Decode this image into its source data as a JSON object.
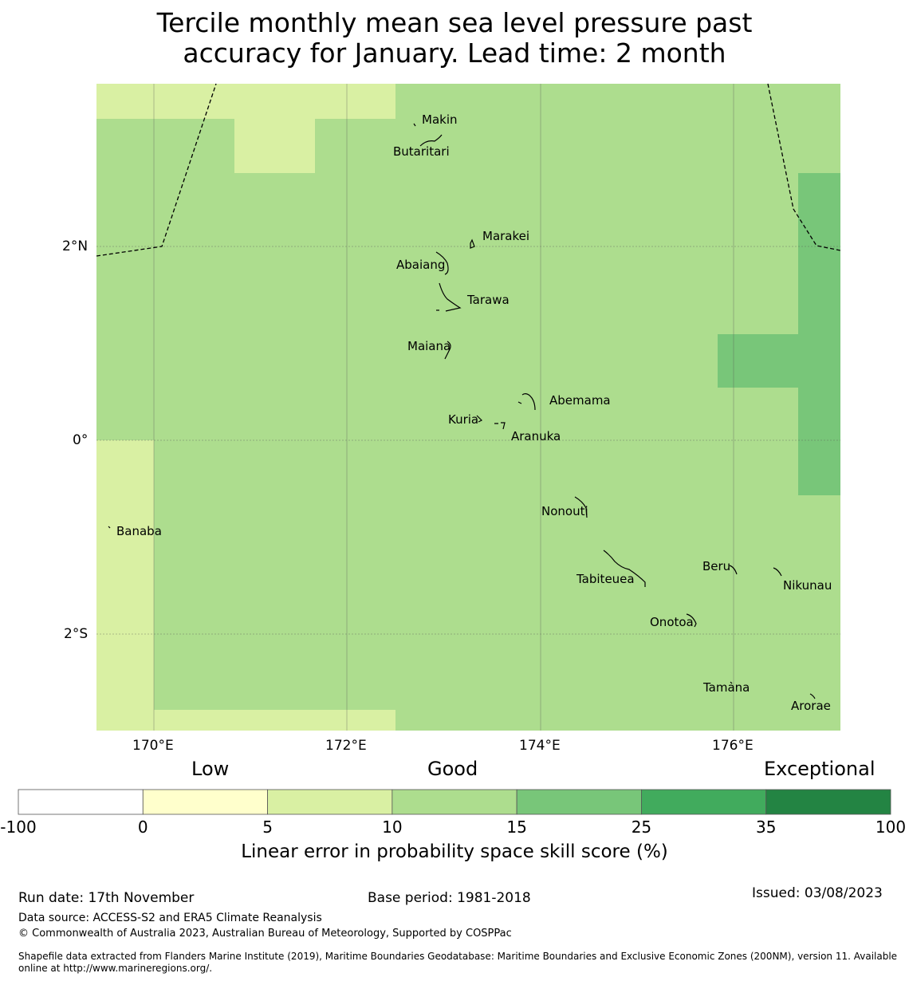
{
  "title_line1": "Tercile monthly mean sea level pressure past",
  "title_line2": "accuracy for January. Lead time: 2 month",
  "axes": {
    "lat_ticks": [
      "2°N",
      "0°",
      "2°S"
    ],
    "lon_ticks": [
      "170°E",
      "172°E",
      "174°E",
      "176°E"
    ]
  },
  "places": [
    {
      "name": "Makin"
    },
    {
      "name": "Butaritari"
    },
    {
      "name": "Marakei"
    },
    {
      "name": "Abaiang"
    },
    {
      "name": "Tarawa"
    },
    {
      "name": "Maiana"
    },
    {
      "name": "Abemama"
    },
    {
      "name": "Kuria"
    },
    {
      "name": "Aranuka"
    },
    {
      "name": "Nonouti"
    },
    {
      "name": "Banaba"
    },
    {
      "name": "Tabiteuea"
    },
    {
      "name": "Beru"
    },
    {
      "name": "Nikunau"
    },
    {
      "name": "Onotoa"
    },
    {
      "name": "Tamana"
    },
    {
      "name": "Arorae"
    }
  ],
  "colorbar": {
    "category_labels": {
      "low": "Low",
      "good": "Good",
      "exceptional": "Exceptional"
    },
    "ticks": [
      "-100",
      "0",
      "5",
      "10",
      "15",
      "25",
      "35",
      "100"
    ],
    "colors": [
      "#ffffff",
      "#ffffcc",
      "#d9f0a3",
      "#addd8e",
      "#78c679",
      "#41ab5d",
      "#238443"
    ],
    "title": "Linear error in probability space skill score (%)"
  },
  "footer": {
    "run_date": "Run date: 17th November",
    "base_period": "Base period: 1981-2018",
    "issued": "Issued: 03/08/2023",
    "data_source": "Data source: ACCESS-S2 and ERA5 Climate Reanalysis",
    "copyright": "© Commonwealth of Australia 2023, Australian Bureau of Meteorology, Supported by COSPPac",
    "shapefile_line1": "Shapefile data extracted from Flanders Marine Institute (2019), Maritime Boundaries Geodatabase: Maritime Boundaries and Exclusive Economic Zones (200NM), version 11. Available",
    "shapefile_line2": "online at http://www.marineregions.org/."
  }
}
